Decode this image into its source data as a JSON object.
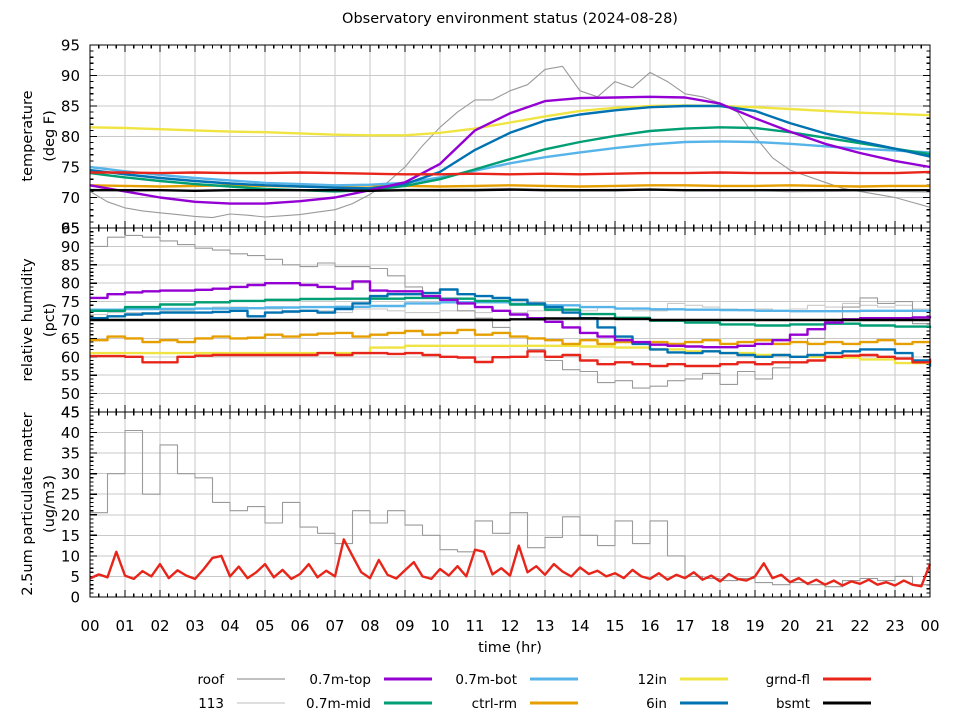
{
  "title": "Observatory environment status (2024-08-28)",
  "x_axis": {
    "label": "time (hr)",
    "range": [
      0,
      24
    ],
    "tick_labels": [
      "00",
      "01",
      "02",
      "03",
      "04",
      "05",
      "06",
      "07",
      "08",
      "09",
      "10",
      "11",
      "12",
      "13",
      "14",
      "15",
      "16",
      "17",
      "18",
      "19",
      "20",
      "21",
      "22",
      "23",
      "00"
    ]
  },
  "series_colors": {
    "roof": "#9a9a9a",
    "113": "#c9c9c9",
    "0.7m-top": "#9400d3",
    "0.7m-mid": "#009e73",
    "0.7m-bot": "#56b4e9",
    "ctrl-rm": "#e69f00",
    "12in": "#f0e442",
    "6in": "#0072b2",
    "grnd-fl": "#e8251a",
    "bsmt": "#000000"
  },
  "legend": {
    "rows": [
      [
        "roof",
        "0.7m-top",
        "0.7m-bot",
        "12in",
        "grnd-fl"
      ],
      [
        "113",
        "0.7m-mid",
        "ctrl-rm",
        "6in",
        "bsmt"
      ]
    ]
  },
  "chart_data": [
    {
      "type": "line",
      "name": "temperature",
      "ylabel_line1": "temperature",
      "ylabel_line2": "(deg F)",
      "ylim": [
        65,
        95
      ],
      "yticks": [
        65,
        70,
        75,
        80,
        85,
        90,
        95
      ],
      "grid": true,
      "series": [
        {
          "name": "113",
          "x_step": 1,
          "values": [
            71.4,
            71.3,
            71.3,
            71.2,
            71.3,
            71.3,
            71.2,
            71.3,
            71.3,
            71.4,
            71.4,
            71.5,
            71.5,
            71.4,
            71.3,
            71.4,
            71.3,
            71.2,
            71.3,
            71.2,
            70.9,
            71,
            71.1,
            71,
            70.8
          ]
        },
        {
          "name": "roof",
          "x_step": 0.5,
          "values": [
            71,
            69.3,
            68.3,
            67.8,
            67.5,
            67.2,
            66.9,
            66.7,
            67.3,
            67.1,
            66.8,
            67,
            67.2,
            67.6,
            68,
            69,
            70.5,
            72.5,
            75,
            78.5,
            81.5,
            84,
            86,
            86,
            87.5,
            88.5,
            91,
            91.5,
            87.5,
            86.5,
            89,
            88,
            90.5,
            89,
            87,
            86.5,
            85.5,
            84,
            80,
            76.5,
            74.5,
            73.5,
            72.5,
            71.5,
            71,
            70.5,
            70,
            69.2,
            68.4
          ]
        },
        {
          "name": "12in",
          "x_step": 1,
          "values": [
            81.5,
            81.4,
            81.2,
            81,
            80.8,
            80.7,
            80.5,
            80.3,
            80.2,
            80.2,
            80.6,
            81.3,
            82.3,
            83.3,
            84.2,
            84.7,
            85,
            85.1,
            85,
            84.8,
            84.5,
            84.2,
            83.9,
            83.7,
            83.5
          ]
        },
        {
          "name": "ctrl-rm",
          "x_step": 1,
          "values": [
            72,
            71.9,
            71.8,
            71.9,
            72,
            71.9,
            71.8,
            71.9,
            72,
            71.9,
            71.8,
            71.9,
            72,
            71.9,
            71.8,
            71.9,
            72,
            72,
            71.9,
            71.9,
            72,
            71.9,
            71.8,
            71.9,
            71.9
          ]
        },
        {
          "name": "0.7m-bot",
          "x_step": 1,
          "values": [
            75,
            74.3,
            73.7,
            73.2,
            72.8,
            72.4,
            72.2,
            72,
            72.1,
            72.4,
            73.3,
            74.4,
            75.6,
            76.6,
            77.4,
            78.1,
            78.7,
            79.1,
            79.2,
            79.1,
            78.8,
            78.4,
            78,
            77.7,
            77.4
          ]
        },
        {
          "name": "0.7m-mid",
          "x_step": 1,
          "values": [
            74,
            73.3,
            72.7,
            72.2,
            71.8,
            71.4,
            71.2,
            71,
            71.2,
            71.9,
            73,
            74.6,
            76.3,
            77.9,
            79.1,
            80.1,
            80.9,
            81.3,
            81.5,
            81.4,
            80.7,
            79.8,
            78.9,
            78,
            77.1
          ]
        },
        {
          "name": "6in",
          "x_step": 1,
          "values": [
            74.5,
            73.8,
            73.2,
            72.7,
            72.3,
            72,
            71.8,
            71.6,
            71.5,
            72.2,
            74.2,
            77.8,
            80.6,
            82.6,
            83.6,
            84.3,
            84.8,
            85,
            85,
            84.2,
            82.2,
            80.5,
            79.2,
            78,
            76.7
          ]
        },
        {
          "name": "0.7m-top",
          "x_step": 1,
          "values": [
            72,
            71,
            70,
            69.3,
            69,
            69,
            69.4,
            70,
            71.2,
            72.5,
            75.5,
            81,
            83.8,
            85.8,
            86.3,
            86.4,
            86.5,
            86.4,
            85.4,
            83,
            80.8,
            78.8,
            77.3,
            76,
            75
          ]
        },
        {
          "name": "grnd-fl",
          "x_step": 1,
          "values": [
            74.1,
            74.1,
            74,
            74.1,
            74,
            74,
            74.1,
            74,
            73.9,
            73.8,
            73.8,
            73.9,
            73.8,
            73.9,
            73.8,
            73.9,
            74,
            74,
            74.1,
            74,
            74,
            74.1,
            74,
            74,
            74.2
          ]
        },
        {
          "name": "bsmt",
          "x_step": 1,
          "values": [
            71.2,
            71.2,
            71.2,
            71.1,
            71.2,
            71.2,
            71.2,
            71.2,
            71.1,
            71.2,
            71.2,
            71.2,
            71.3,
            71.2,
            71.2,
            71.2,
            71.3,
            71.2,
            71.2,
            71.2,
            71.2,
            71.2,
            71.2,
            71.2,
            71.2
          ]
        }
      ]
    },
    {
      "type": "line",
      "name": "relative_humidity",
      "ylabel_line1": "relative humidity",
      "ylabel_line2": "(pct)",
      "ylim": [
        45,
        95
      ],
      "yticks": [
        45,
        50,
        55,
        60,
        65,
        70,
        75,
        80,
        85,
        90,
        95
      ],
      "grid": true,
      "series": [
        {
          "name": "113",
          "x_step": 0.5,
          "step": true,
          "values": [
            71.5,
            72,
            72,
            71.5,
            72.5,
            72.5,
            72,
            73.5,
            73.5,
            73,
            73,
            72,
            72.5,
            72.5,
            72,
            73,
            73,
            72.5,
            72,
            72,
            72.5,
            72.5,
            72,
            72.5,
            72,
            72.5,
            72.5,
            72,
            72.5,
            73.5,
            73,
            72.5,
            72.5,
            74.5,
            74,
            73.5,
            73,
            72.5,
            73,
            72.5,
            73,
            74,
            73.5,
            74.5,
            74,
            73.5,
            74,
            73,
            72.5
          ]
        },
        {
          "name": "roof",
          "x_step": 0.5,
          "step": true,
          "values": [
            90,
            92.5,
            93,
            92.5,
            91.5,
            90.5,
            89.5,
            89,
            88,
            87.5,
            86.5,
            85,
            84.5,
            85.5,
            84.5,
            84.5,
            84,
            82,
            79,
            77.5,
            75.5,
            72.5,
            70.5,
            68,
            65.5,
            62,
            59,
            56.5,
            56,
            53,
            53.5,
            51.5,
            52,
            53.5,
            54,
            55.5,
            52.5,
            56,
            54,
            57,
            60,
            65,
            70,
            73.5,
            76,
            74.5,
            75,
            69,
            65.5
          ]
        },
        {
          "name": "12in",
          "x_step": 1,
          "step": true,
          "values": [
            61,
            61,
            61,
            61,
            61,
            61,
            61,
            61,
            62.5,
            63,
            63,
            63,
            63,
            63,
            62.8,
            62.5,
            62,
            61.5,
            61,
            60.5,
            60,
            59.8,
            59.3,
            58.3,
            57.5
          ]
        },
        {
          "name": "ctrl-rm",
          "x_step": 0.5,
          "step": true,
          "values": [
            64.5,
            65.5,
            65,
            64,
            64.5,
            64,
            65,
            65.5,
            65,
            65.2,
            66,
            65.5,
            66,
            66.3,
            66.5,
            65.5,
            66,
            66.5,
            67,
            66,
            66.5,
            67.3,
            66,
            66.5,
            65.5,
            65,
            64.5,
            63.5,
            64.5,
            63.5,
            64,
            63.7,
            64,
            63.5,
            64,
            64.5,
            63.5,
            64,
            64.5,
            63.5,
            64,
            63.5,
            64,
            63.5,
            64,
            64.5,
            63.5,
            64,
            64
          ]
        },
        {
          "name": "0.7m-bot",
          "x_step": 1,
          "step": true,
          "values": [
            72.8,
            73,
            73,
            73.1,
            73.2,
            73.4,
            73.5,
            73.6,
            73.8,
            74.5,
            74.8,
            74.8,
            74.4,
            74,
            73.5,
            73.1,
            72.9,
            72.8,
            72.7,
            72.5,
            72.4,
            72.4,
            72.5,
            72.5,
            72.4
          ]
        },
        {
          "name": "0.7m-mid",
          "x_step": 1,
          "step": true,
          "values": [
            72.5,
            73.5,
            74.2,
            74.8,
            75.2,
            75.5,
            75.7,
            75.8,
            75.8,
            76,
            75.8,
            75.2,
            74.2,
            72.8,
            71.6,
            70.6,
            69.8,
            69.3,
            68.8,
            68.5,
            68.8,
            69,
            68.5,
            68.2,
            67.8
          ]
        },
        {
          "name": "6in",
          "x_step": 0.5,
          "step": true,
          "values": [
            70.5,
            71,
            71.5,
            71.8,
            72,
            72,
            72,
            72.2,
            72.5,
            71,
            72,
            72.3,
            72.5,
            72,
            73,
            74.5,
            76.5,
            77,
            77,
            77.3,
            78.3,
            77,
            76.5,
            76,
            75.5,
            74.5,
            73.5,
            72,
            70.5,
            68,
            65.5,
            63.5,
            62,
            61.2,
            61,
            61.5,
            61,
            60.5,
            60,
            60.5,
            60,
            60.5,
            61,
            61.5,
            62,
            62,
            61,
            59,
            57.3
          ]
        },
        {
          "name": "0.7m-top",
          "x_step": 0.5,
          "step": true,
          "values": [
            76,
            77,
            77.5,
            77.8,
            78,
            78,
            78.2,
            78.5,
            79,
            79.5,
            80,
            80,
            79.5,
            79,
            78.5,
            80.5,
            78,
            77.8,
            77.8,
            76.5,
            75.5,
            74.5,
            73.5,
            72.5,
            71.5,
            70.5,
            69.5,
            68,
            66.5,
            65.5,
            64.5,
            64,
            63.3,
            63,
            62.8,
            62.6,
            62.6,
            63,
            63.5,
            64.5,
            66,
            67.5,
            69.3,
            70.2,
            70.5,
            70.5,
            70.5,
            70.7,
            71
          ]
        },
        {
          "name": "grnd-fl",
          "x_step": 0.5,
          "step": true,
          "values": [
            60.2,
            60.2,
            60,
            58.5,
            58.5,
            60,
            60.3,
            60.5,
            60.5,
            60.5,
            60.5,
            60.5,
            60.5,
            61,
            60.5,
            61,
            61,
            60.8,
            61,
            60.5,
            60,
            59.8,
            58.6,
            59.9,
            60,
            61.5,
            60,
            60.5,
            59,
            58,
            58.5,
            58,
            57.5,
            58,
            57.5,
            57.5,
            58,
            58.5,
            58,
            58.5,
            58.5,
            59,
            60,
            60.3,
            60.5,
            60,
            59.5,
            58.5,
            59.5
          ]
        },
        {
          "name": "bsmt",
          "x_step": 1,
          "step": true,
          "values": [
            70,
            70,
            70,
            70,
            70,
            70,
            70,
            70,
            70,
            70,
            70,
            70,
            70.2,
            70.4,
            70.4,
            70.3,
            70,
            70,
            70,
            70,
            70,
            70,
            70,
            70,
            70
          ]
        }
      ]
    },
    {
      "type": "line",
      "name": "particulate_matter_2_5um",
      "ylabel_line1": "2.5um particulate matter",
      "ylabel_line2": "(ug/m3)",
      "ylim": [
        0,
        45
      ],
      "yticks": [
        0,
        5,
        10,
        15,
        20,
        25,
        30,
        35,
        40,
        45
      ],
      "grid": true,
      "series": [
        {
          "name": "roof",
          "x_step": 0.5,
          "step": true,
          "values": [
            20.5,
            30,
            40.5,
            25,
            37,
            30,
            29,
            23,
            21,
            22,
            18,
            23,
            17,
            15.5,
            13,
            21,
            18,
            21,
            17.5,
            15,
            11.5,
            11,
            18.5,
            15.5,
            20.5,
            12,
            14.5,
            19.5,
            15,
            12.5,
            18.5,
            13,
            18.5,
            10,
            5,
            4.5,
            4,
            4.5,
            3.5,
            3,
            3.5,
            3,
            2.5,
            4,
            4.5,
            4,
            5,
            3,
            5.5
          ]
        },
        {
          "name": "grnd-fl",
          "x_step": 0.25,
          "values": [
            4.5,
            5.5,
            4.8,
            11,
            5.2,
            4.4,
            6.3,
            5,
            8,
            4.6,
            6.5,
            5.2,
            4.4,
            6.8,
            9.5,
            10,
            5,
            7.4,
            4.6,
            6,
            8,
            4.8,
            6.6,
            4.4,
            5.6,
            8,
            4.8,
            6.4,
            5,
            14,
            10,
            6,
            4.6,
            9,
            5.4,
            4.5,
            6.5,
            8.5,
            5,
            4.4,
            6.8,
            5.2,
            7.5,
            5,
            11.5,
            11,
            5.5,
            7,
            5.2,
            12.5,
            6,
            7.5,
            5.4,
            8,
            6.2,
            5,
            7.2,
            5.6,
            6.4,
            5,
            5.8,
            4.6,
            6.6,
            5,
            4.4,
            5.8,
            4.2,
            5.4,
            4.6,
            6,
            4.2,
            5.2,
            3.8,
            5.6,
            4.4,
            4,
            5,
            8.2,
            4.6,
            5.4,
            3.6,
            4.6,
            3.2,
            4.2,
            3,
            4,
            2.8,
            3.8,
            3.2,
            4.2,
            3,
            3.6,
            2.8,
            4,
            3,
            2.6,
            8
          ]
        }
      ]
    }
  ]
}
